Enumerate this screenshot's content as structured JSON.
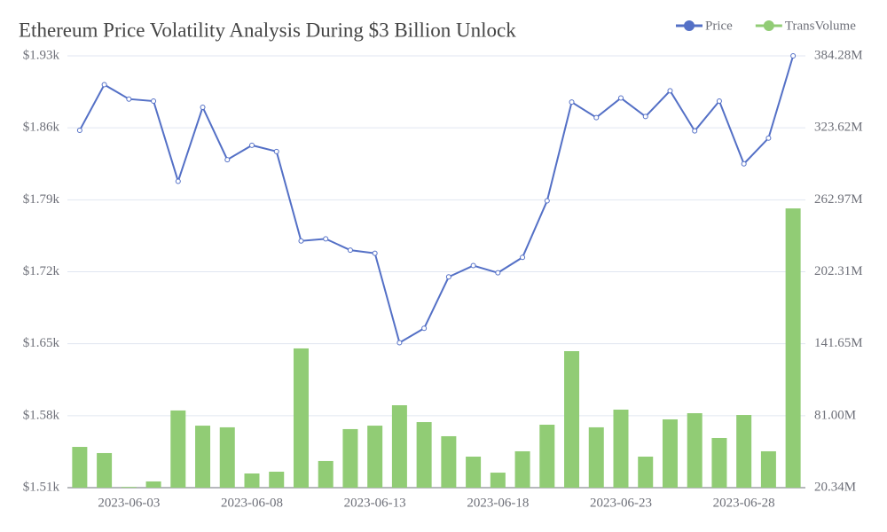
{
  "chart_data": {
    "type": "bar-line",
    "title": "Ethereum Price Volatility Analysis During $3 Billion Unlock",
    "categories": [
      null,
      null,
      "2023-06-03",
      null,
      null,
      null,
      null,
      "2023-06-08",
      null,
      null,
      null,
      null,
      "2023-06-13",
      null,
      null,
      null,
      null,
      "2023-06-18",
      null,
      null,
      null,
      null,
      "2023-06-23",
      null,
      null,
      null,
      null,
      "2023-06-28",
      null,
      null
    ],
    "series": [
      {
        "name": "Price",
        "type": "line",
        "color": "#5470c6",
        "axis": "y",
        "values": [
          1857.6,
          1902,
          1888,
          1886,
          1808,
          1880,
          1829,
          1843,
          1837,
          1750,
          1752,
          1741,
          1738,
          1651,
          1665,
          1715,
          1726,
          1719,
          1734,
          1789,
          1885,
          1870,
          1889,
          1871,
          1896,
          1857,
          1886,
          1825,
          1850,
          1930
        ]
      },
      {
        "name": "TransVolume",
        "type": "bar",
        "color": "#91cc75",
        "axis": "y2",
        "values": [
          54700000,
          49500000,
          21000000,
          25600000,
          85400000,
          72600000,
          71200000,
          32300000,
          33800000,
          137700000,
          42800000,
          69700000,
          72600000,
          89800000,
          75600000,
          63700000,
          46500000,
          33000000,
          51000000,
          73400000,
          135400000,
          71200000,
          86100000,
          46500000,
          77900000,
          83100000,
          62200000,
          81600000,
          51000000,
          255700000
        ]
      }
    ],
    "ylim": [
      1510,
      1930
    ],
    "yticks": [
      {
        "value": 1510,
        "label": "$1.51k"
      },
      {
        "value": 1580,
        "label": "$1.58k"
      },
      {
        "value": 1650,
        "label": "$1.65k"
      },
      {
        "value": 1720,
        "label": "$1.72k"
      },
      {
        "value": 1790,
        "label": "$1.79k"
      },
      {
        "value": 1860,
        "label": "$1.86k"
      },
      {
        "value": 1930,
        "label": "$1.93k"
      }
    ],
    "y2lim": [
      20340000,
      384280000
    ],
    "y2ticks": [
      {
        "value": 20340000,
        "label": "20.34M"
      },
      {
        "value": 81000000,
        "label": "81.00M"
      },
      {
        "value": 141650000,
        "label": "141.65M"
      },
      {
        "value": 202310000,
        "label": "202.31M"
      },
      {
        "value": 262970000,
        "label": "262.97M"
      },
      {
        "value": 323620000,
        "label": "323.62M"
      },
      {
        "value": 384280000,
        "label": "384.28M"
      }
    ],
    "grid": true,
    "legend": "top-right"
  }
}
